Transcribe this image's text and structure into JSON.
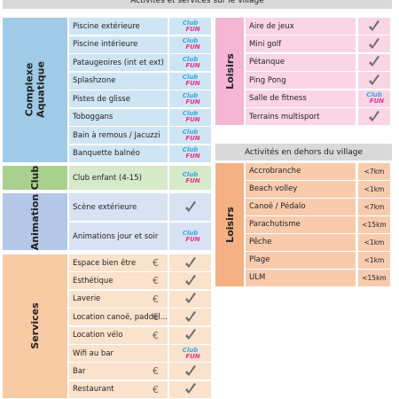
{
  "header": {
    "title": "Activités et services sur le village"
  },
  "badge": {
    "line1": "Club",
    "line2": "FUN"
  },
  "left_groups": [
    {
      "name": "Complexe Aquatique",
      "rows": [
        {
          "label": "Piscine extérieure",
          "icon": "club"
        },
        {
          "label": "Piscine intérieure",
          "icon": "club"
        },
        {
          "label": "Pataugeoires (int et ext)",
          "icon": "club"
        },
        {
          "label": "Splashzone",
          "icon": "club"
        },
        {
          "label": "Pistes de glisse",
          "icon": "club"
        },
        {
          "label": "Toboggans",
          "icon": "club"
        },
        {
          "label": "Bain à remous / Jacuzzi",
          "icon": "club"
        },
        {
          "label": "Banquette balnéo",
          "icon": "club"
        }
      ]
    },
    {
      "name": "Club",
      "rows": [
        {
          "label": "Club enfant (4-15)",
          "icon": "club"
        }
      ]
    },
    {
      "name": "Animation",
      "rows": [
        {
          "label": "Scène extérieure",
          "icon": "check"
        },
        {
          "label": "Animations jour et soir",
          "icon": "club"
        }
      ]
    },
    {
      "name": "Services",
      "rows": [
        {
          "label": "Espace bien être",
          "price": "€",
          "icon": "check"
        },
        {
          "label": "Esthétique",
          "price": "€",
          "icon": "check"
        },
        {
          "label": "Laverie",
          "price": "€",
          "icon": "check"
        },
        {
          "label": "Location canoë, paddel...",
          "price": "€",
          "icon": "check"
        },
        {
          "label": "Location vélo",
          "price": "€",
          "icon": "check"
        },
        {
          "label": "Wifi au bar",
          "icon": "club"
        },
        {
          "label": "Bar",
          "price": "€",
          "icon": "check"
        },
        {
          "label": "Restaurant",
          "price": "€",
          "icon": "check"
        }
      ]
    }
  ],
  "right_group": {
    "name": "Loisirs",
    "rows": [
      {
        "label": "Aire de jeux",
        "icon": "check"
      },
      {
        "label": "Mini golf",
        "icon": "check"
      },
      {
        "label": "Pétanque",
        "icon": "check"
      },
      {
        "label": "Ping Pong",
        "icon": "check"
      },
      {
        "label": "Salle de fitness",
        "icon": "club"
      },
      {
        "label": "Terrains multisport",
        "icon": "check"
      }
    ]
  },
  "outside": {
    "title": "Activités en dehors du village",
    "name": "Loisirs",
    "rows": [
      {
        "label": "Accrobranche",
        "value": "<7km"
      },
      {
        "label": "Beach volley",
        "value": "<1km"
      },
      {
        "label": "Canoë / Pédalo",
        "value": "<7km"
      },
      {
        "label": "Parachutisme",
        "value": "<15km"
      },
      {
        "label": "Pêche",
        "value": "<1km"
      },
      {
        "label": "Plage",
        "value": "<1km"
      },
      {
        "label": "ULM",
        "value": "<15km"
      }
    ]
  }
}
